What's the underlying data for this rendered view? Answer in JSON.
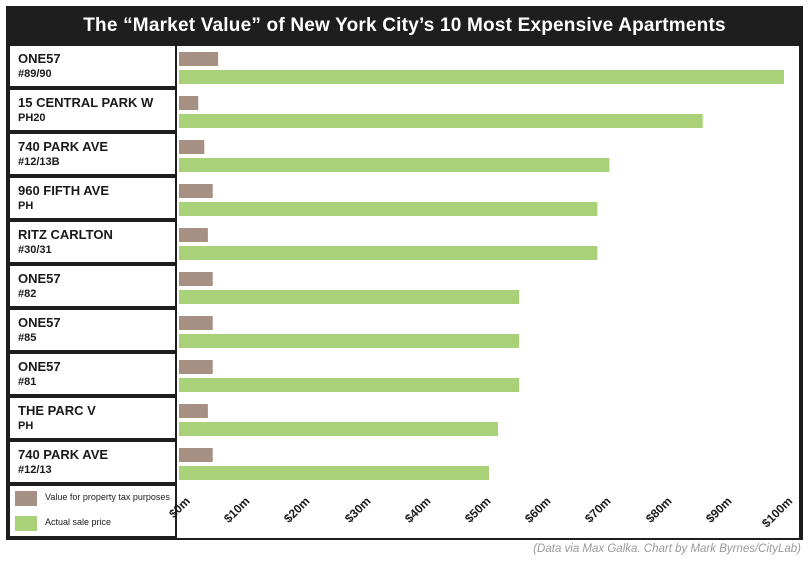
{
  "title": "The “Market Value” of New York City’s 10 Most Expensive Apartments",
  "source": "(Data via Max Galka. Chart by Mark Byrnes/CityLab)",
  "colors": {
    "tax": "#a68f83",
    "sale": "#a8d178",
    "frame": "#1e1e1e"
  },
  "legend": [
    {
      "label": "Value for property tax purposes",
      "color": "#a68f83"
    },
    {
      "label": "Actual sale price",
      "color": "#a8d178"
    }
  ],
  "chart_data": {
    "type": "bar",
    "orientation": "horizontal",
    "title": "The “Market Value” of New York City’s 10 Most Expensive Apartments",
    "categories": [
      {
        "name": "ONE57",
        "unit": "#89/90"
      },
      {
        "name": "15 CENTRAL PARK W",
        "unit": "PH20"
      },
      {
        "name": "740 PARK AVE",
        "unit": "#12/13B"
      },
      {
        "name": "960 FIFTH AVE",
        "unit": "PH"
      },
      {
        "name": "RITZ CARLTON",
        "unit": "#30/31"
      },
      {
        "name": "ONE57",
        "unit": "#82"
      },
      {
        "name": "ONE57",
        "unit": "#85"
      },
      {
        "name": "ONE57",
        "unit": "#81"
      },
      {
        "name": "THE PARC V",
        "unit": "PH"
      },
      {
        "name": "740 PARK AVE",
        "unit": "#12/13"
      }
    ],
    "series": [
      {
        "name": "Value for property tax purposes",
        "values": [
          6.5,
          3.2,
          4.2,
          5.6,
          4.8,
          5.6,
          5.6,
          5.6,
          4.8,
          5.6
        ]
      },
      {
        "name": "Actual sale price",
        "values": [
          100.5,
          87.0,
          71.5,
          69.5,
          69.5,
          56.5,
          56.5,
          56.5,
          53.0,
          51.5
        ]
      }
    ],
    "xlim": [
      0,
      100
    ],
    "xticks": [
      "$0m",
      "$10m",
      "$20m",
      "$30m",
      "$40m",
      "$50m",
      "$60m",
      "$70m",
      "$80m",
      "$90m",
      "$100m"
    ],
    "legend_position": "bottom-left",
    "grid": false
  }
}
